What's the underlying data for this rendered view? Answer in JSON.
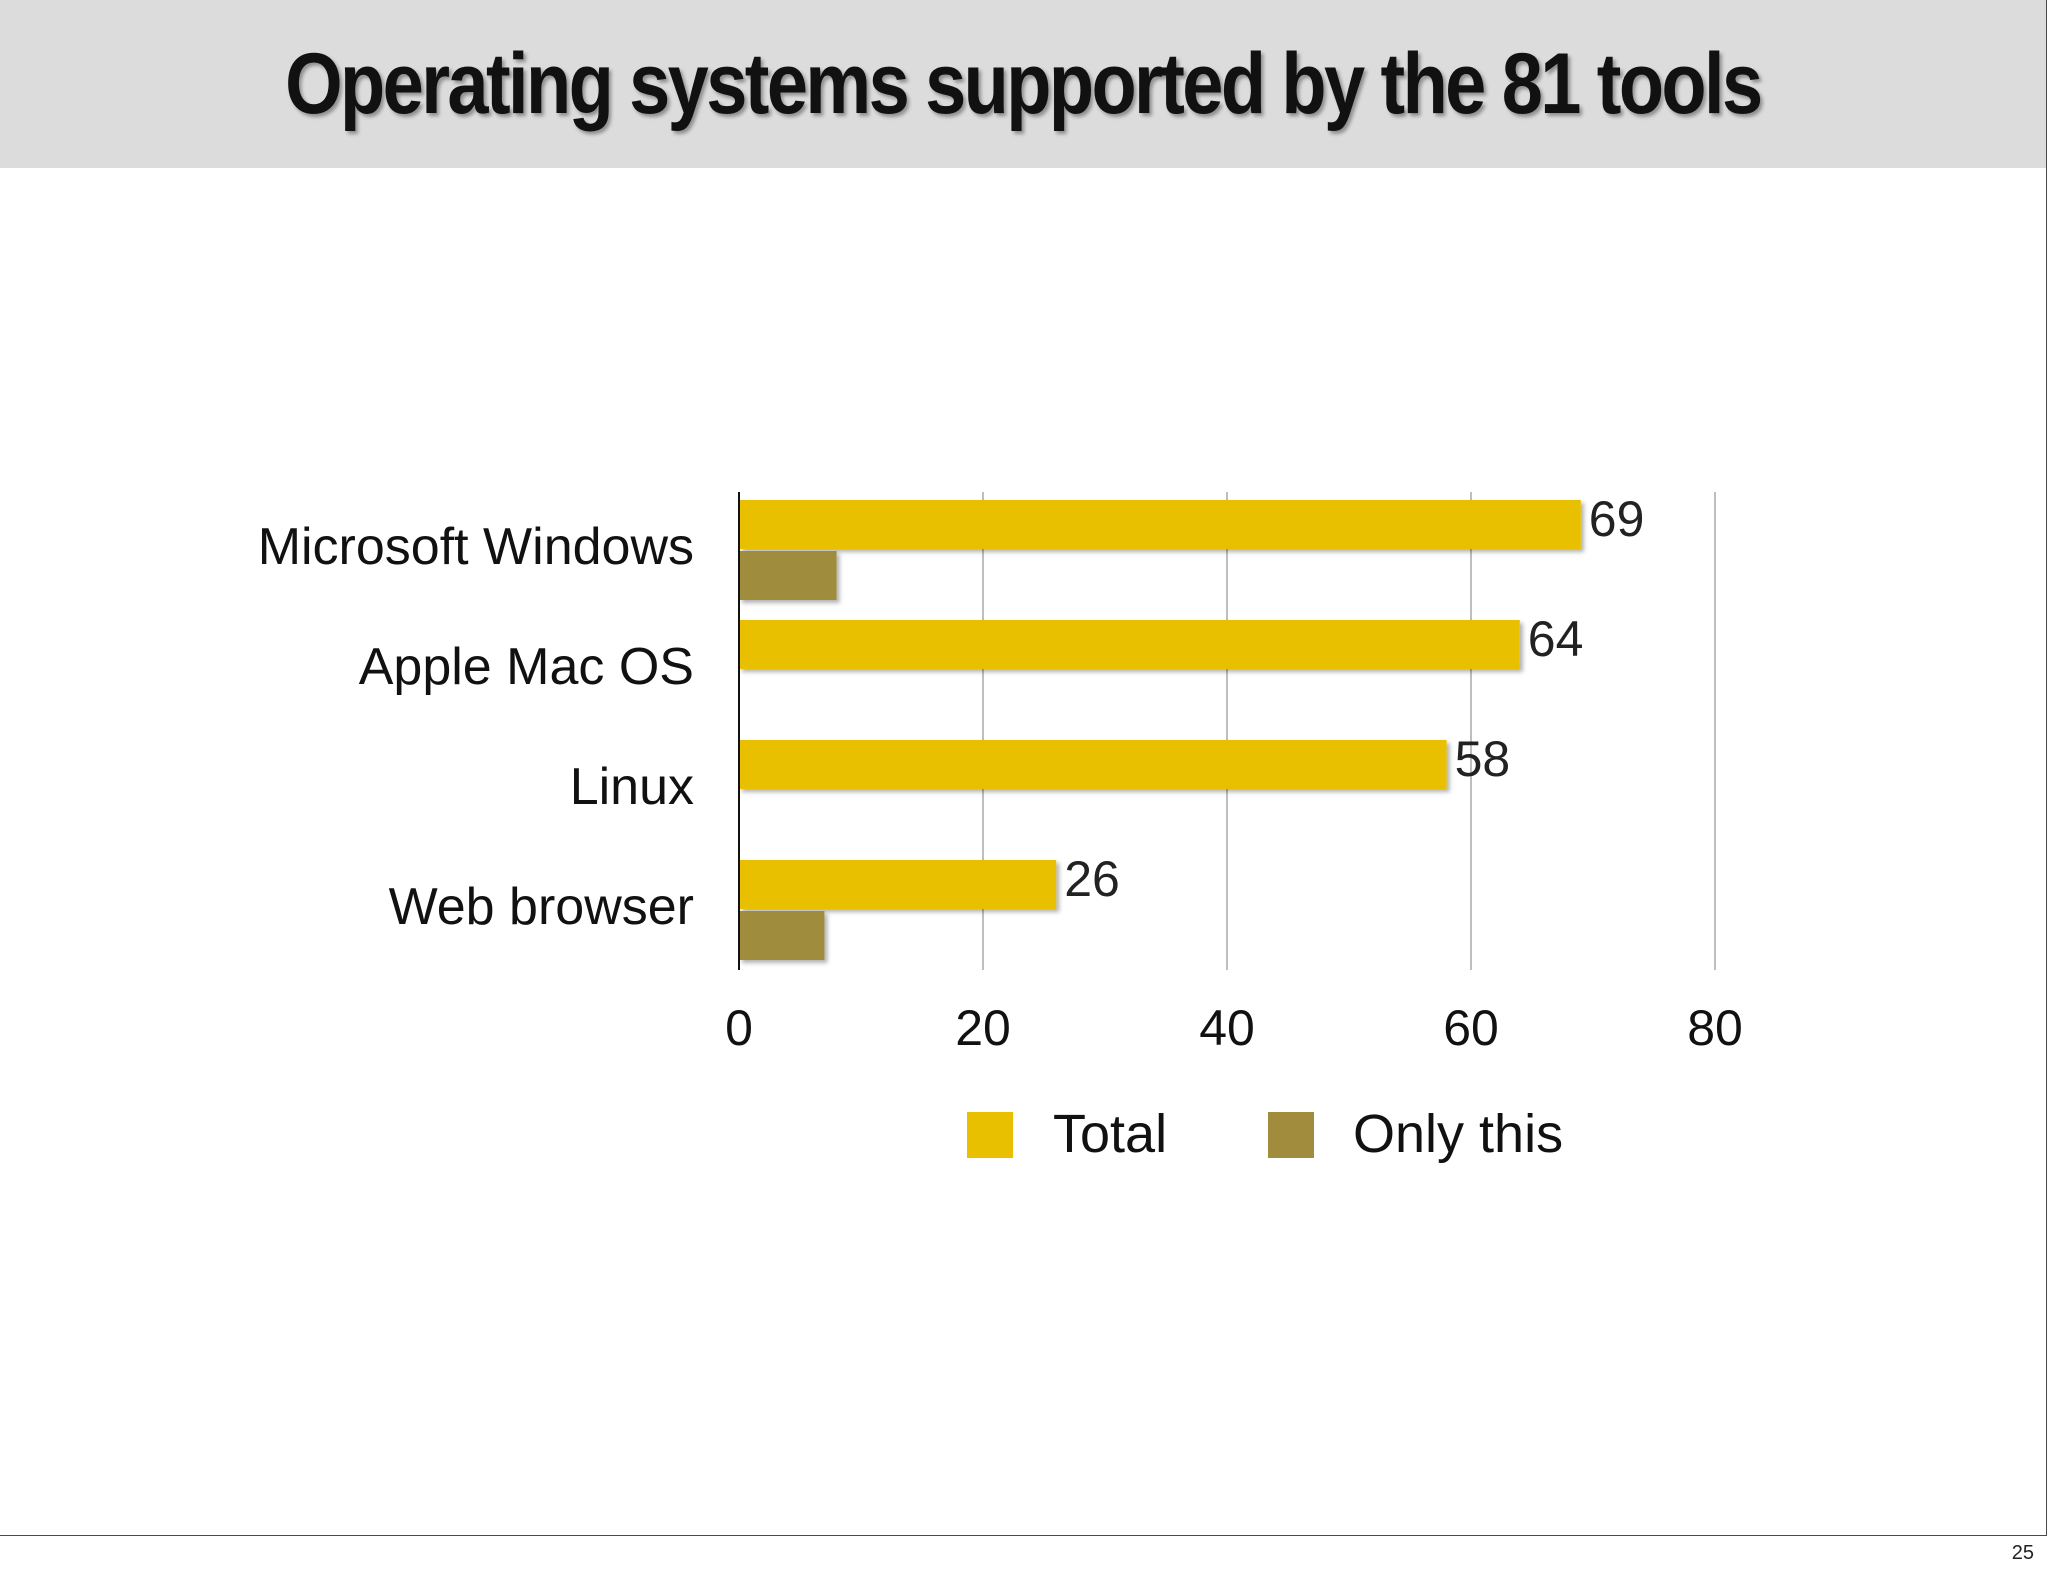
{
  "slide": {
    "title": "Operating systems supported by the 81 tools",
    "page_number": "25"
  },
  "colors": {
    "total": "#e8c000",
    "only_this": "#a08c3c",
    "gridline": "#a8a8a8",
    "axis": "#111111",
    "title_bar": "#dcdcdc"
  },
  "chart_data": {
    "type": "bar",
    "orientation": "horizontal",
    "categories": [
      "Microsoft Windows",
      "Apple Mac OS",
      "Linux",
      "Web browser"
    ],
    "series": [
      {
        "name": "Total",
        "values": [
          69,
          64,
          58,
          26
        ],
        "data_labels": [
          "69",
          "64",
          "58",
          "26"
        ]
      },
      {
        "name": "Only this",
        "values": [
          8,
          0,
          0,
          7
        ]
      }
    ],
    "xlim": [
      0,
      80
    ],
    "xticks": [
      0,
      20,
      40,
      60,
      80
    ],
    "xtick_labels": [
      "0",
      "20",
      "40",
      "60",
      "80"
    ],
    "grid": "vertical",
    "legend_position": "bottom"
  }
}
